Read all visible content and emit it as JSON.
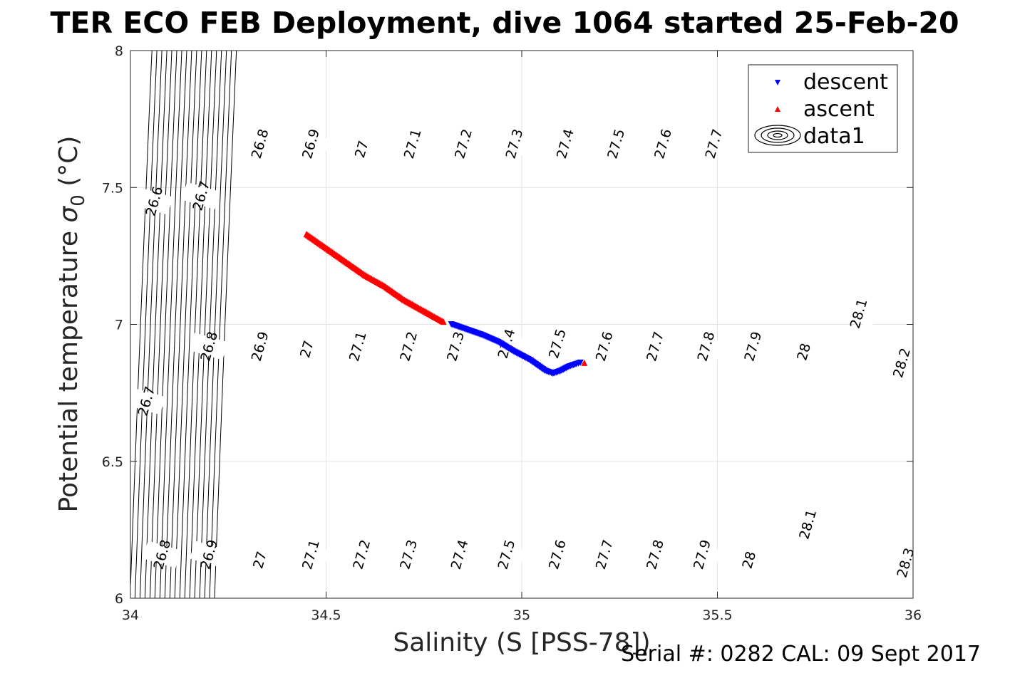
{
  "chart_data": {
    "type": "scatter",
    "title": "TER ECO FEB Deployment, dive 1064 started 25-Feb-20",
    "xlabel": "Salinity (S [PSS-78])",
    "ylabel_main": "Potential temperature ",
    "ylabel_symbol": "σ",
    "ylabel_sub": "0",
    "ylabel_unit": " (°C)",
    "footer": "Serial #: 0282  CAL: 09 Sept 2017",
    "xlim": [
      34,
      36
    ],
    "ylim": [
      6,
      8
    ],
    "xticks": [
      "34",
      "34.5",
      "35",
      "35.5",
      "36"
    ],
    "yticks": [
      "6",
      "6.5",
      "7",
      "7.5",
      "8"
    ],
    "grid": true,
    "legend_position": "top-right",
    "legend": [
      {
        "label": "descent",
        "marker": "triangle-down",
        "color": "#0000ff"
      },
      {
        "label": "ascent",
        "marker": "triangle-up",
        "color": "#ff0000"
      },
      {
        "label": "data1",
        "marker": "contour",
        "color": "#000000"
      }
    ],
    "series": [
      {
        "name": "descent",
        "color": "#0000ff",
        "marker": "triangle-down",
        "points": [
          [
            34.82,
            7.0
          ],
          [
            34.86,
            6.98
          ],
          [
            34.9,
            6.96
          ],
          [
            34.94,
            6.935
          ],
          [
            34.98,
            6.9
          ],
          [
            35.02,
            6.87
          ],
          [
            35.06,
            6.83
          ],
          [
            35.08,
            6.82
          ],
          [
            35.1,
            6.83
          ],
          [
            35.12,
            6.845
          ],
          [
            35.14,
            6.855
          ],
          [
            35.15,
            6.86
          ]
        ]
      },
      {
        "name": "ascent",
        "color": "#ff0000",
        "marker": "triangle-up",
        "points": [
          [
            34.45,
            7.33
          ],
          [
            34.5,
            7.28
          ],
          [
            34.55,
            7.23
          ],
          [
            34.6,
            7.18
          ],
          [
            34.65,
            7.14
          ],
          [
            34.7,
            7.09
          ],
          [
            34.75,
            7.05
          ],
          [
            34.8,
            7.01
          ],
          [
            35.16,
            6.86
          ]
        ]
      }
    ],
    "contours": {
      "levels": [
        "26.6",
        "26.7",
        "26.8",
        "26.9",
        "27",
        "27.1",
        "27.2",
        "27.3",
        "27.4",
        "27.5",
        "27.6",
        "27.7",
        "27.8",
        "27.9",
        "28",
        "28.1",
        "28.2",
        "28.3"
      ],
      "labels": [
        {
          "text": "26.6",
          "s": 34.06,
          "t": 7.45
        },
        {
          "text": "26.7",
          "s": 34.18,
          "t": 7.47
        },
        {
          "text": "26.8",
          "s": 34.33,
          "t": 7.66
        },
        {
          "text": "26.9",
          "s": 34.46,
          "t": 7.66
        },
        {
          "text": "27",
          "s": 34.59,
          "t": 7.64
        },
        {
          "text": "27.1",
          "s": 34.72,
          "t": 7.66
        },
        {
          "text": "27.2",
          "s": 34.85,
          "t": 7.66
        },
        {
          "text": "27.3",
          "s": 34.98,
          "t": 7.66
        },
        {
          "text": "27.4",
          "s": 35.11,
          "t": 7.66
        },
        {
          "text": "27.5",
          "s": 35.24,
          "t": 7.66
        },
        {
          "text": "27.6",
          "s": 35.36,
          "t": 7.66
        },
        {
          "text": "27.7",
          "s": 35.49,
          "t": 7.66
        },
        {
          "text": "26.7",
          "s": 34.04,
          "t": 6.72
        },
        {
          "text": "26.8",
          "s": 34.2,
          "t": 6.92
        },
        {
          "text": "26.9",
          "s": 34.33,
          "t": 6.92
        },
        {
          "text": "27",
          "s": 34.45,
          "t": 6.91
        },
        {
          "text": "27.1",
          "s": 34.58,
          "t": 6.92
        },
        {
          "text": "27.2",
          "s": 34.71,
          "t": 6.92
        },
        {
          "text": "27.3",
          "s": 34.83,
          "t": 6.92
        },
        {
          "text": "27.4",
          "s": 34.96,
          "t": 6.93
        },
        {
          "text": "27.5",
          "s": 35.09,
          "t": 6.93
        },
        {
          "text": "27.6",
          "s": 35.21,
          "t": 6.92
        },
        {
          "text": "27.7",
          "s": 35.34,
          "t": 6.92
        },
        {
          "text": "27.8",
          "s": 35.47,
          "t": 6.92
        },
        {
          "text": "27.9",
          "s": 35.59,
          "t": 6.92
        },
        {
          "text": "28",
          "s": 35.72,
          "t": 6.9
        },
        {
          "text": "28.1",
          "s": 35.86,
          "t": 7.04
        },
        {
          "text": "28.2",
          "s": 35.97,
          "t": 6.86
        },
        {
          "text": "26.8",
          "s": 34.08,
          "t": 6.16
        },
        {
          "text": "26.9",
          "s": 34.2,
          "t": 6.16
        },
        {
          "text": "27",
          "s": 34.33,
          "t": 6.14
        },
        {
          "text": "27.1",
          "s": 34.46,
          "t": 6.16
        },
        {
          "text": "27.2",
          "s": 34.59,
          "t": 6.16
        },
        {
          "text": "27.3",
          "s": 34.71,
          "t": 6.16
        },
        {
          "text": "27.4",
          "s": 34.84,
          "t": 6.16
        },
        {
          "text": "27.5",
          "s": 34.96,
          "t": 6.16
        },
        {
          "text": "27.6",
          "s": 35.09,
          "t": 6.16
        },
        {
          "text": "27.7",
          "s": 35.21,
          "t": 6.16
        },
        {
          "text": "27.8",
          "s": 35.34,
          "t": 6.16
        },
        {
          "text": "27.9",
          "s": 35.46,
          "t": 6.16
        },
        {
          "text": "28",
          "s": 35.58,
          "t": 6.14
        },
        {
          "text": "28.1",
          "s": 35.73,
          "t": 6.27
        },
        {
          "text": "28.3",
          "s": 35.98,
          "t": 6.13
        }
      ]
    }
  }
}
